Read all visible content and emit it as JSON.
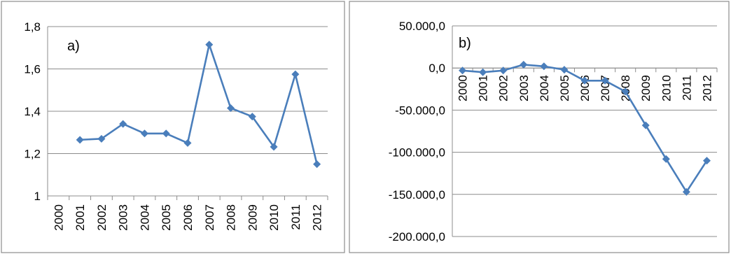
{
  "colors": {
    "series": "#4a7ebb",
    "grid": "#8c8c8c"
  },
  "chart_data": [
    {
      "type": "line",
      "title": "",
      "panel_label": "a)",
      "x": [
        "2000",
        "2001",
        "2002",
        "2003",
        "2004",
        "2005",
        "2006",
        "2007",
        "2008",
        "2009",
        "2010",
        "2011",
        "2012"
      ],
      "series": [
        {
          "values": [
            null,
            1.265,
            1.27,
            1.34,
            1.295,
            1.295,
            1.25,
            1.715,
            1.415,
            1.375,
            1.232,
            1.575,
            1.15
          ]
        }
      ],
      "y_ticks": [
        "1",
        "1,2",
        "1,4",
        "1,6",
        "1,8"
      ],
      "y_tick_values": [
        1,
        1.2,
        1.4,
        1.6,
        1.8
      ],
      "ylim": [
        1,
        1.8
      ],
      "grid": true,
      "legend": "none",
      "marker": "diamond"
    },
    {
      "type": "line",
      "title": "",
      "panel_label": "b)",
      "x": [
        "2000",
        "2001",
        "2002",
        "2003",
        "2004",
        "2005",
        "2006",
        "2007",
        "2008",
        "2009",
        "2010",
        "2011",
        "2012"
      ],
      "series": [
        {
          "values": [
            -3000,
            -5000,
            -3000,
            4000,
            2000,
            -2000,
            -15000,
            -15000,
            -28000,
            -68000,
            -108000,
            -147000,
            -110000
          ]
        }
      ],
      "y_ticks": [
        "-200.000,0",
        "-150.000,0",
        "-100.000,0",
        "-50.000,0",
        "0,0",
        "50.000,0"
      ],
      "y_tick_values": [
        -200000,
        -150000,
        -100000,
        -50000,
        0,
        50000
      ],
      "ylim": [
        -200000,
        50000
      ],
      "grid": true,
      "legend": "none",
      "marker": "diamond"
    }
  ]
}
